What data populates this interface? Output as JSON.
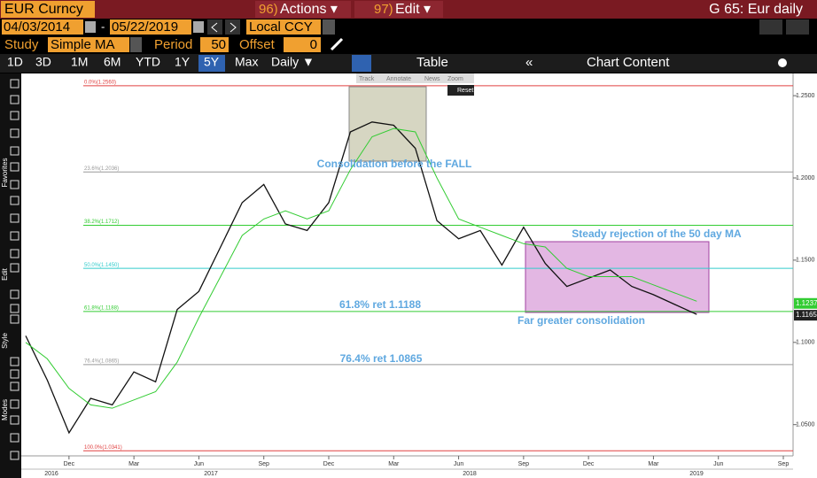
{
  "header": {
    "security": "EUR Curncy",
    "actions_num": "96)",
    "actions": "Actions ▾",
    "edit_num": "97)",
    "edit": "Edit ▾",
    "chart_name": "G 65: Eur daily"
  },
  "controls": {
    "start_date": "04/03/2014",
    "dash": "-",
    "end_date": "05/22/2019",
    "currency": "Local CCY",
    "study_label": "Study",
    "study": "Simple MA",
    "period_label": "Period",
    "period": "50",
    "offset_label": "Offset",
    "offset": "0"
  },
  "tabs": [
    "1D",
    "3D",
    "1M",
    "6M",
    "YTD",
    "1Y",
    "5Y",
    "Max",
    "Daily ▼"
  ],
  "table": "Table",
  "chart_content": "Chart Content",
  "chart_tools": [
    "Track",
    "Annotate",
    "News",
    "Zoom"
  ],
  "reset": "Reset",
  "side_labels": [
    "Favorites",
    "Edit",
    "Style",
    "Modes"
  ],
  "chart_data": {
    "type": "line",
    "x": [
      "2016-10",
      "2016-11",
      "2016-12",
      "2017-01",
      "2017-02",
      "2017-03",
      "2017-04",
      "2017-05",
      "2017-06",
      "2017-07",
      "2017-08",
      "2017-09",
      "2017-10",
      "2017-11",
      "2017-12",
      "2018-01",
      "2018-02",
      "2018-03",
      "2018-04",
      "2018-05",
      "2018-06",
      "2018-07",
      "2018-08",
      "2018-09",
      "2018-10",
      "2018-11",
      "2018-12",
      "2019-01",
      "2019-02",
      "2019-03",
      "2019-04",
      "2019-05"
    ],
    "series": [
      {
        "color": "#111111",
        "values": [
          1.104,
          1.077,
          1.045,
          1.066,
          1.062,
          1.082,
          1.076,
          1.12,
          1.131,
          1.158,
          1.185,
          1.196,
          1.172,
          1.168,
          1.185,
          1.228,
          1.234,
          1.232,
          1.218,
          1.174,
          1.163,
          1.168,
          1.147,
          1.17,
          1.148,
          1.134,
          1.139,
          1.144,
          1.134,
          1.129,
          1.123,
          1.117
        ]
      },
      {
        "color": "#33cc33",
        "values": [
          1.1,
          1.09,
          1.072,
          1.062,
          1.06,
          1.065,
          1.07,
          1.088,
          1.115,
          1.14,
          1.165,
          1.175,
          1.18,
          1.175,
          1.18,
          1.205,
          1.225,
          1.23,
          1.228,
          1.2,
          1.175,
          1.17,
          1.165,
          1.16,
          1.158,
          1.145,
          1.14,
          1.14,
          1.14,
          1.135,
          1.13,
          1.125
        ]
      }
    ],
    "xlim": [
      "2016-10",
      "2019-09"
    ],
    "xticks": [
      {
        "value": "2016-12",
        "label": "Dec"
      },
      {
        "value": "2017-03",
        "label": "Mar"
      },
      {
        "value": "2017-06",
        "label": "Jun"
      },
      {
        "value": "2017-09",
        "label": "Sep"
      },
      {
        "value": "2017-12",
        "label": "Dec"
      },
      {
        "value": "2018-03",
        "label": "Mar"
      },
      {
        "value": "2018-06",
        "label": "Jun"
      },
      {
        "value": "2018-09",
        "label": "Sep"
      },
      {
        "value": "2018-12",
        "label": "Dec"
      },
      {
        "value": "2019-03",
        "label": "Mar"
      },
      {
        "value": "2019-06",
        "label": "Jun"
      },
      {
        "value": "2019-09",
        "label": "Sep"
      }
    ],
    "years": [
      "2016",
      "2017",
      "2018",
      "2019"
    ],
    "ylim": [
      1.031,
      1.2635
    ],
    "yticks": [
      {
        "value": 1.25,
        "label": "1.2500"
      },
      {
        "value": 1.2,
        "label": "1.2000"
      },
      {
        "value": 1.15,
        "label": "1.1500"
      },
      {
        "value": 1.1,
        "label": "1.1000"
      },
      {
        "value": 1.05,
        "label": "1.0500"
      }
    ],
    "fib_levels": [
      {
        "label": "0.0%(1.2560)",
        "value": 1.256,
        "color": "#e04040"
      },
      {
        "label": "23.6%(1.2036)",
        "value": 1.2036,
        "color": "#999999"
      },
      {
        "label": "38.2%(1.1712)",
        "value": 1.1712,
        "color": "#33cc33"
      },
      {
        "label": "50.0%(1.1450)",
        "value": 1.145,
        "color": "#33cccc"
      },
      {
        "label": "61.8%(1.1188)",
        "value": 1.1188,
        "color": "#33cc33"
      },
      {
        "label": "76.4%(1.0865)",
        "value": 1.0865,
        "color": "#999999"
      },
      {
        "label": "100.0%(1.0341)",
        "value": 1.0341,
        "color": "#e04040"
      }
    ],
    "price_tags": [
      {
        "value": 1.1237,
        "label": "1.1237",
        "color": "#33cc33"
      },
      {
        "value": 1.1165,
        "label": "1.1165",
        "color": "#222222"
      }
    ],
    "annotations": [
      "Consolidation before the FALL",
      "Steady rejection of the 50 day MA",
      "61.8% ret 1.1188",
      "Far greater consolidation",
      "76.4% ret 1.0865"
    ]
  }
}
